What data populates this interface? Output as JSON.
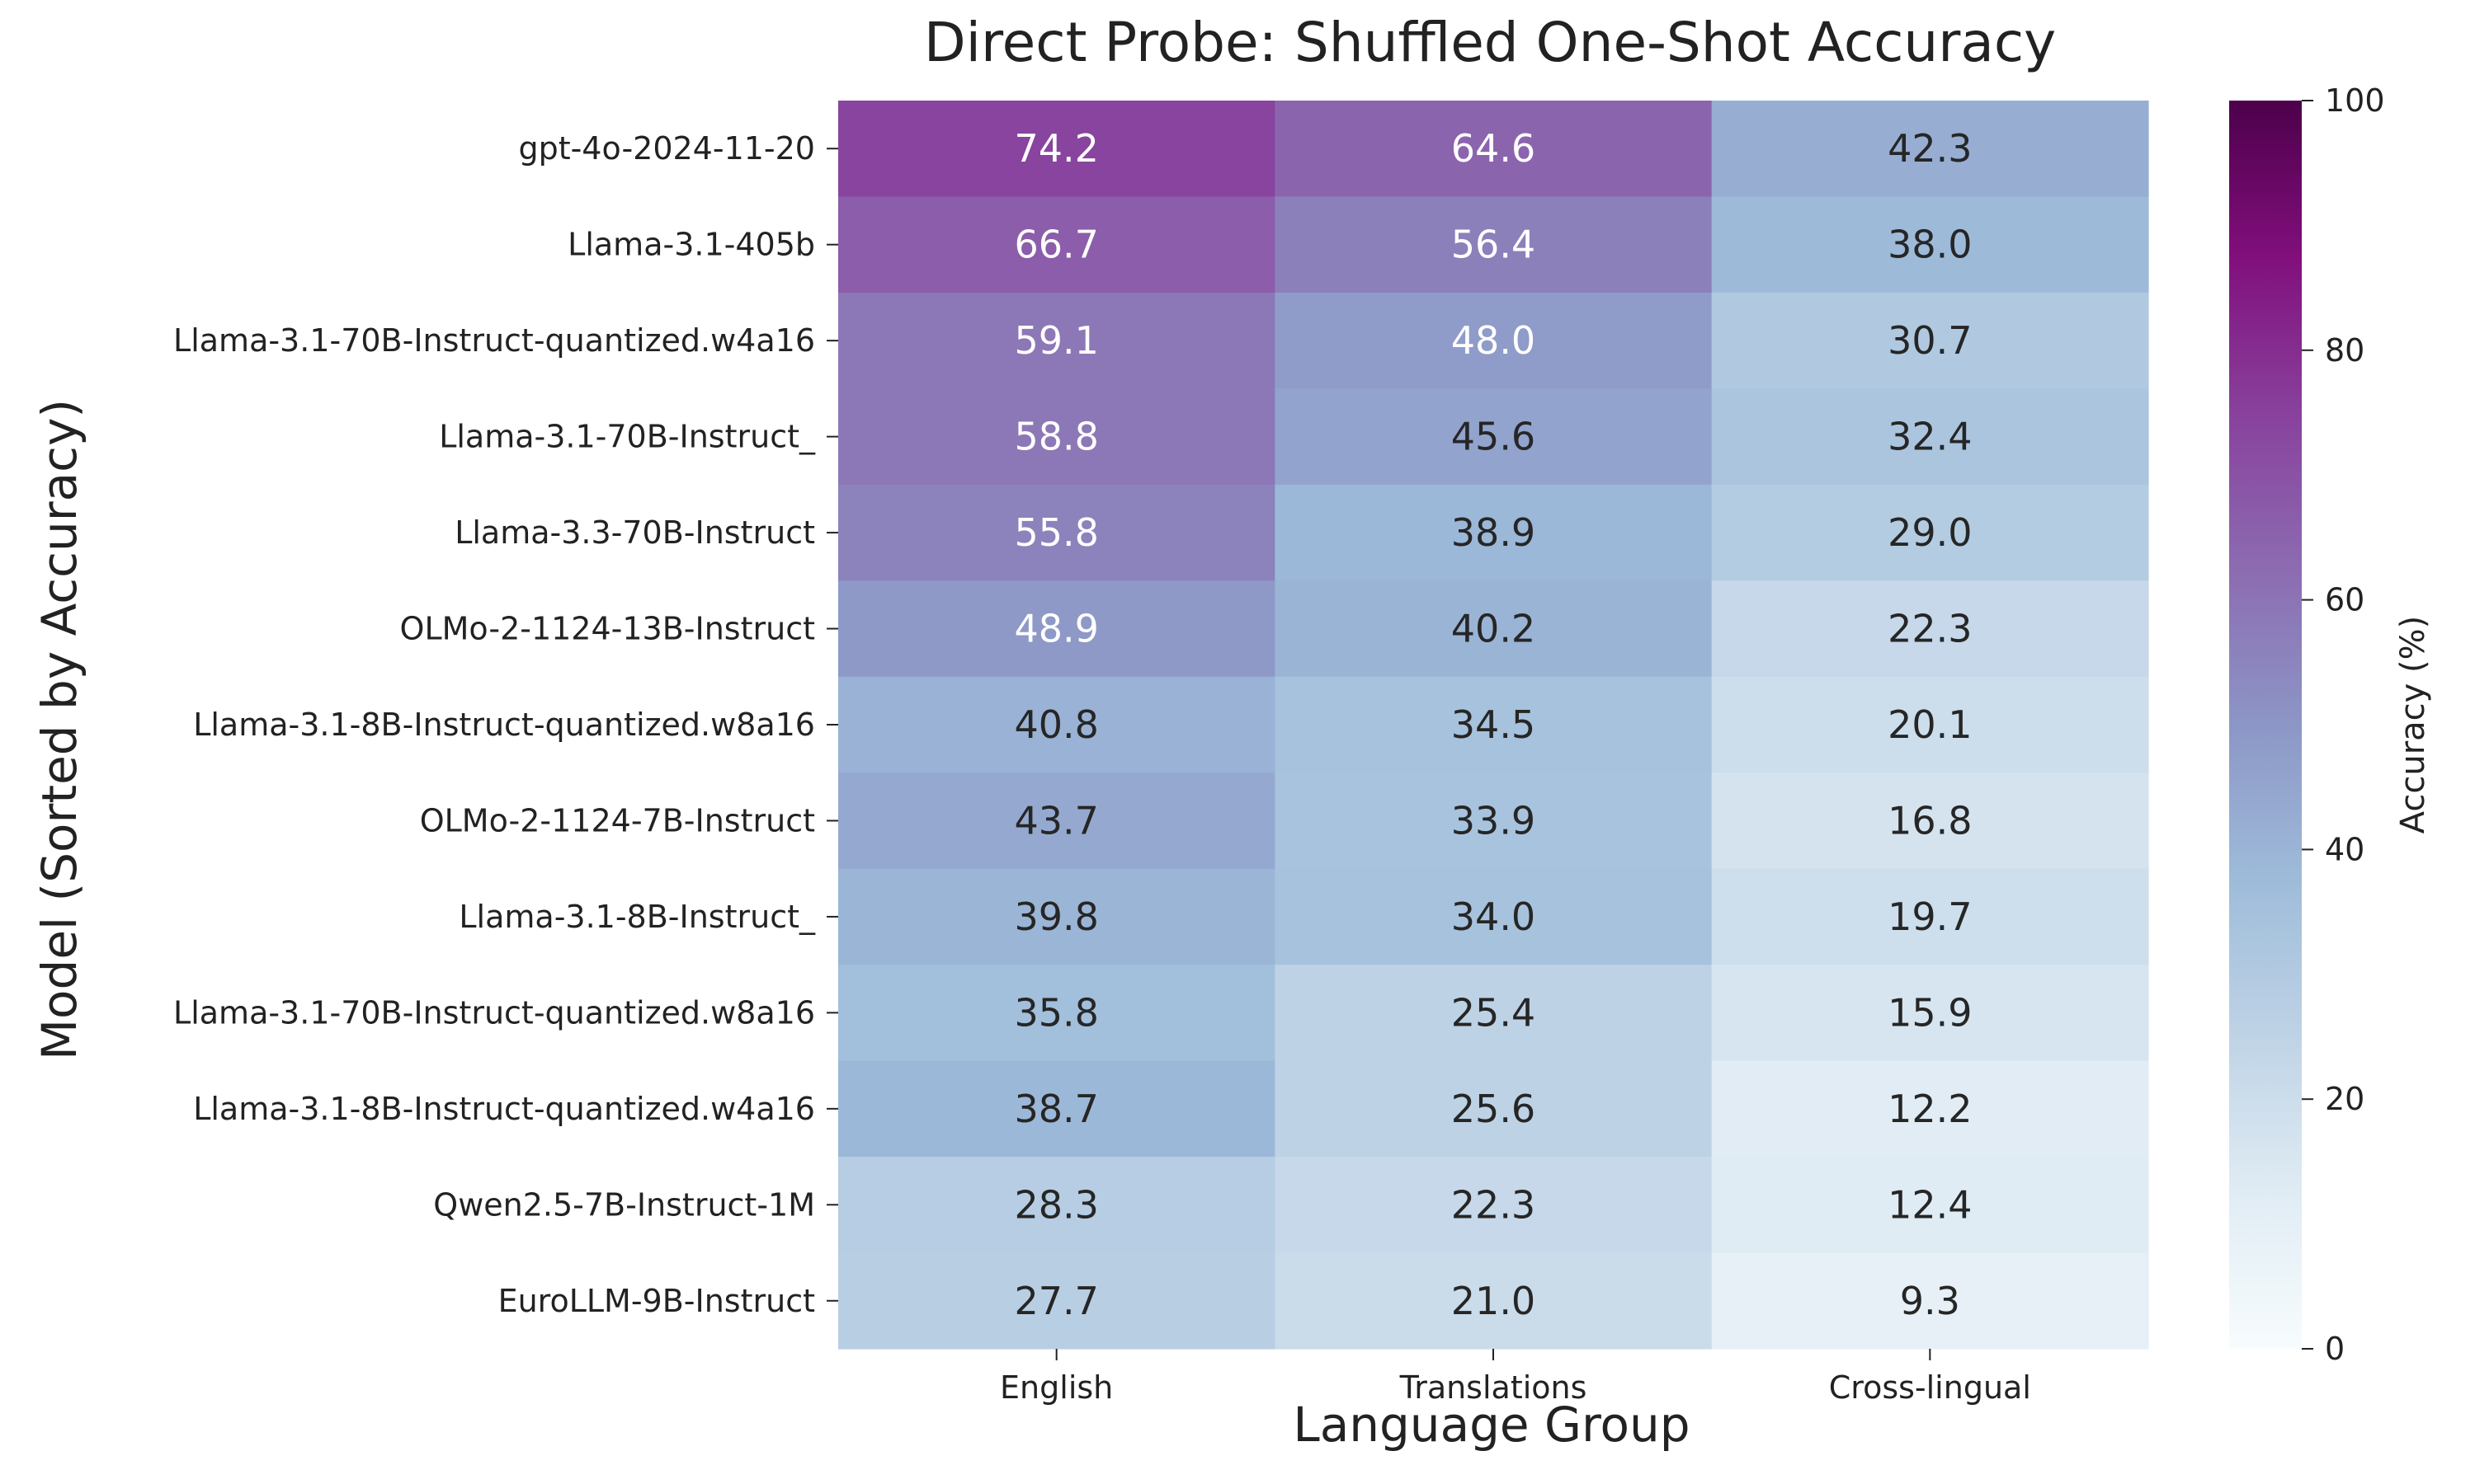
{
  "chart_data": {
    "type": "heatmap",
    "title": "Direct Probe: Shuffled One-Shot Accuracy",
    "xlabel": "Language Group",
    "ylabel": "Model (Sorted by Accuracy)",
    "columns": [
      "English",
      "Translations",
      "Cross-lingual"
    ],
    "rows": [
      "gpt-4o-2024-11-20",
      "Llama-3.1-405b",
      "Llama-3.1-70B-Instruct-quantized.w4a16",
      "Llama-3.1-70B-Instruct_",
      "Llama-3.3-70B-Instruct",
      "OLMo-2-1124-13B-Instruct",
      "Llama-3.1-8B-Instruct-quantized.w8a16",
      "OLMo-2-1124-7B-Instruct",
      "Llama-3.1-8B-Instruct_",
      "Llama-3.1-70B-Instruct-quantized.w8a16",
      "Llama-3.1-8B-Instruct-quantized.w4a16",
      "Qwen2.5-7B-Instruct-1M",
      "EuroLLM-9B-Instruct"
    ],
    "values": [
      [
        74.2,
        64.6,
        42.3
      ],
      [
        66.7,
        56.4,
        38.0
      ],
      [
        59.1,
        48.0,
        30.7
      ],
      [
        58.8,
        45.6,
        32.4
      ],
      [
        55.8,
        38.9,
        29.0
      ],
      [
        48.9,
        40.2,
        22.3
      ],
      [
        40.8,
        34.5,
        20.1
      ],
      [
        43.7,
        33.9,
        16.8
      ],
      [
        39.8,
        34.0,
        19.7
      ],
      [
        35.8,
        25.4,
        15.9
      ],
      [
        38.7,
        25.6,
        12.2
      ],
      [
        28.3,
        22.3,
        12.4
      ],
      [
        27.7,
        21.0,
        9.3
      ]
    ],
    "colorbar": {
      "label": "Accuracy (%)",
      "range": [
        0,
        100
      ],
      "ticks": [
        0,
        20,
        40,
        60,
        80,
        100
      ],
      "colormap": "BuPu",
      "colormap_stops": [
        "#f7fcfd",
        "#e0ecf4",
        "#bfd3e6",
        "#9ebcda",
        "#8c96c6",
        "#8c6bb1",
        "#88419d",
        "#810f7c",
        "#4d004b"
      ]
    },
    "grid": false,
    "value_label_format": "0.1f"
  }
}
